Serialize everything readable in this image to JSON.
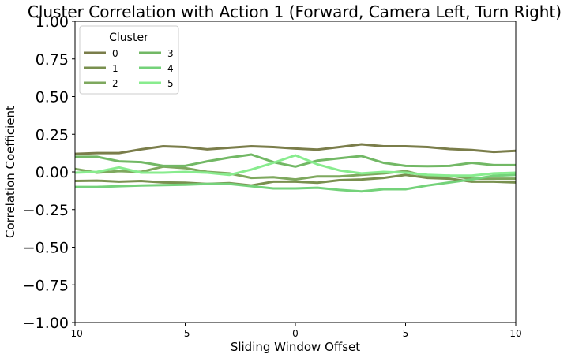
{
  "chart_data": {
    "type": "line",
    "title": "Cluster Correlation with Action 1 (Forward, Camera Left, Turn Right)",
    "xlabel": "Sliding Window Offset",
    "ylabel": "Correlation Coefficient",
    "xlim": [
      -10,
      10
    ],
    "ylim": [
      -1.0,
      1.0
    ],
    "x_ticks": [
      -10,
      -5,
      0,
      5,
      10
    ],
    "x_tick_labels": [
      "-10",
      "-5",
      "0",
      "5",
      "10"
    ],
    "y_ticks": [
      -1.0,
      -0.75,
      -0.5,
      -0.25,
      0.0,
      0.25,
      0.5,
      0.75,
      1.0
    ],
    "y_tick_labels": [
      "−1.00",
      "−0.75",
      "−0.50",
      "−0.25",
      "0.00",
      "0.25",
      "0.50",
      "0.75",
      "1.00"
    ],
    "grid": false,
    "legend": {
      "title": "Cluster",
      "placement": "top-left",
      "columns": 2
    },
    "x": [
      -10,
      -9,
      -8,
      -7,
      -6,
      -5,
      -4,
      -3,
      -2,
      -1,
      0,
      1,
      2,
      3,
      4,
      5,
      6,
      7,
      8,
      9,
      10
    ],
    "series": [
      {
        "name": "0",
        "color": "#7a7d4a",
        "values": [
          0.12,
          0.125,
          0.125,
          0.15,
          0.17,
          0.165,
          0.15,
          0.16,
          0.17,
          0.165,
          0.155,
          0.148,
          0.165,
          0.183,
          0.17,
          0.17,
          0.165,
          0.152,
          0.145,
          0.133,
          0.14
        ]
      },
      {
        "name": "1",
        "color": "#79904f",
        "values": [
          -0.06,
          -0.058,
          -0.065,
          -0.06,
          -0.07,
          -0.072,
          -0.08,
          -0.075,
          -0.09,
          -0.065,
          -0.065,
          -0.072,
          -0.055,
          -0.05,
          -0.04,
          -0.02,
          -0.04,
          -0.045,
          -0.065,
          -0.065,
          -0.07
        ]
      },
      {
        "name": "2",
        "color": "#7ea85e",
        "values": [
          0.02,
          -0.005,
          0.005,
          0.0,
          0.035,
          0.025,
          0.0,
          -0.01,
          -0.04,
          -0.035,
          -0.05,
          -0.03,
          -0.03,
          -0.02,
          -0.01,
          0.005,
          -0.03,
          -0.025,
          -0.045,
          -0.045,
          -0.045
        ]
      },
      {
        "name": "3",
        "color": "#72b865",
        "values": [
          0.1,
          0.1,
          0.07,
          0.065,
          0.04,
          0.04,
          0.07,
          0.095,
          0.115,
          0.065,
          0.035,
          0.075,
          0.09,
          0.105,
          0.06,
          0.04,
          0.038,
          0.04,
          0.06,
          0.045,
          0.045
        ]
      },
      {
        "name": "4",
        "color": "#74d27a",
        "values": [
          -0.1,
          -0.1,
          -0.095,
          -0.09,
          -0.088,
          -0.085,
          -0.08,
          -0.08,
          -0.095,
          -0.11,
          -0.11,
          -0.105,
          -0.12,
          -0.13,
          -0.115,
          -0.115,
          -0.09,
          -0.07,
          -0.05,
          -0.025,
          -0.02
        ]
      },
      {
        "name": "5",
        "color": "#88ec8e",
        "values": [
          -0.005,
          0.0,
          0.03,
          -0.005,
          -0.005,
          0.0,
          -0.005,
          -0.02,
          0.015,
          0.06,
          0.11,
          0.05,
          0.01,
          -0.01,
          0.0,
          -0.005,
          -0.02,
          -0.025,
          -0.025,
          -0.01,
          -0.005
        ]
      }
    ]
  }
}
